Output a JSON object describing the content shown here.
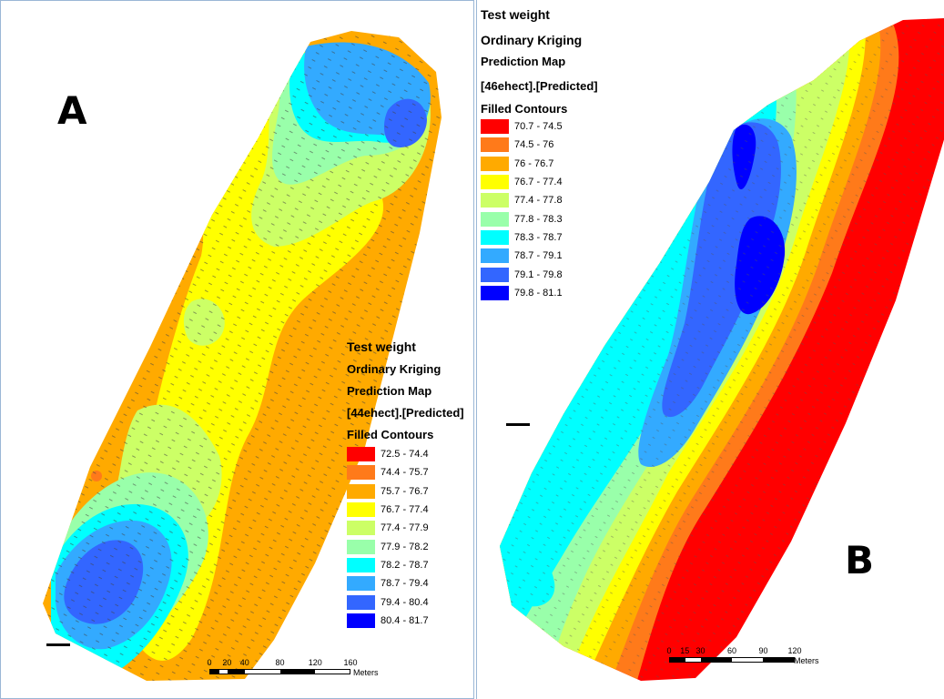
{
  "panel_a": {
    "letter": "A",
    "legend": {
      "title": "Test weight",
      "method": "Ordinary Kriging",
      "map_type": "Prediction Map",
      "layer": "[44ehect].[Predicted]",
      "contour_heading": "Filled Contours",
      "classes": [
        {
          "label": "72.5 - 74.4",
          "color": "#ff0000"
        },
        {
          "label": "74.4 - 75.7",
          "color": "#ff7a1a"
        },
        {
          "label": "75.7 - 76.7",
          "color": "#ffaa00"
        },
        {
          "label": "76.7 - 77.4",
          "color": "#ffff00"
        },
        {
          "label": "77.4 - 77.9",
          "color": "#ccff66"
        },
        {
          "label": "77.9 - 78.2",
          "color": "#99ffaa"
        },
        {
          "label": "78.2 - 78.7",
          "color": "#00ffff"
        },
        {
          "label": "78.7 - 79.4",
          "color": "#33aaff"
        },
        {
          "label": "79.4 - 80.4",
          "color": "#3366ff"
        },
        {
          "label": "80.4 - 81.7",
          "color": "#0000ff"
        }
      ]
    },
    "scale": {
      "ticks": [
        "0",
        "20",
        "40",
        "80",
        "120",
        "160"
      ],
      "unit": "Meters"
    }
  },
  "panel_b": {
    "letter": "B",
    "legend": {
      "title": "Test weight",
      "method": "Ordinary Kriging",
      "map_type": "Prediction Map",
      "layer": "[46ehect].[Predicted]",
      "contour_heading": "Filled Contours",
      "classes": [
        {
          "label": "70.7 - 74.5",
          "color": "#ff0000"
        },
        {
          "label": "74.5 - 76",
          "color": "#ff7a1a"
        },
        {
          "label": "76 - 76.7",
          "color": "#ffaa00"
        },
        {
          "label": "76.7 - 77.4",
          "color": "#ffff00"
        },
        {
          "label": "77.4 - 77.8",
          "color": "#ccff66"
        },
        {
          "label": "77.8 - 78.3",
          "color": "#99ffaa"
        },
        {
          "label": "78.3 - 78.7",
          "color": "#00ffff"
        },
        {
          "label": "78.7 - 79.1",
          "color": "#33aaff"
        },
        {
          "label": "79.1 - 79.8",
          "color": "#3366ff"
        },
        {
          "label": "79.8 - 81.1",
          "color": "#0000ff"
        }
      ]
    },
    "scale": {
      "ticks": [
        "0",
        "15",
        "30",
        "60",
        "90",
        "120"
      ],
      "unit": "Meters"
    }
  }
}
